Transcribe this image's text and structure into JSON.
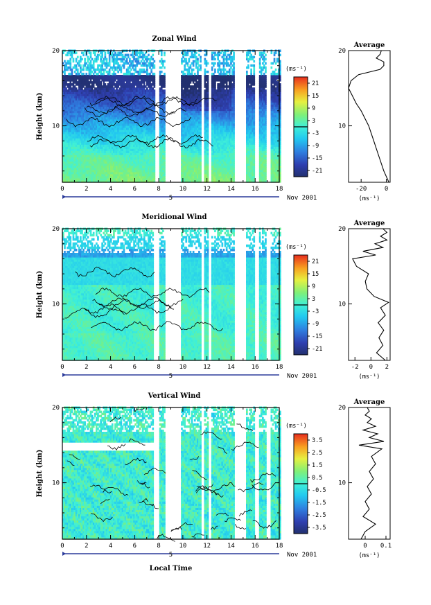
{
  "figure": {
    "date_label": "Nov 2001",
    "day_label": "5",
    "xlabel": "Local Time",
    "avg_title": "Average"
  },
  "chart_data": [
    {
      "type": "heatmap",
      "title": "Zonal Wind",
      "ylabel": "Height (km)",
      "xlim": [
        0,
        18
      ],
      "ylim": [
        2.5,
        20
      ],
      "x_ticks": [
        0,
        2,
        4,
        6,
        8,
        10,
        12,
        14,
        16,
        18
      ],
      "y_ticks": [
        10,
        20
      ],
      "colorbar": {
        "unit": "(ms⁻¹)",
        "labels": [
          21,
          15,
          9,
          3,
          -3,
          -9,
          -15,
          -21
        ],
        "min": -24,
        "max": 24
      },
      "data_gaps_hours": [
        [
          7.7,
          8.1
        ],
        [
          8.5,
          9.8
        ],
        [
          11.5,
          11.8
        ],
        [
          12.1,
          12.4
        ],
        [
          14.3,
          15.2
        ],
        [
          15.9,
          16.3
        ],
        [
          16.9,
          17.3
        ]
      ],
      "profile": {
        "name": "Average",
        "unit": "(ms⁻¹)",
        "xlim": [
          -30,
          3
        ],
        "x_ticks": [
          -20,
          0
        ],
        "heights": [
          2.5,
          4,
          6,
          8,
          10,
          11,
          12,
          13,
          14,
          15,
          16,
          16.8,
          17.5,
          18,
          18.5,
          19,
          19.5,
          20
        ],
        "values": [
          2,
          -2,
          -6,
          -10,
          -14,
          -17,
          -20,
          -24,
          -27,
          -30,
          -28,
          -22,
          -5,
          -2,
          -2,
          -8,
          -5,
          -4
        ]
      },
      "colors": {
        "positive": "#fbe75a",
        "negative": "#2a3a9a"
      }
    },
    {
      "type": "heatmap",
      "title": "Meridional Wind",
      "ylabel": "Height (km)",
      "xlim": [
        0,
        18
      ],
      "ylim": [
        2.5,
        20
      ],
      "x_ticks": [
        0,
        2,
        4,
        6,
        8,
        10,
        12,
        14,
        16,
        18
      ],
      "y_ticks": [
        10,
        20
      ],
      "colorbar": {
        "unit": "(ms⁻¹)",
        "labels": [
          21,
          15,
          9,
          3,
          -3,
          -9,
          -15,
          -21
        ],
        "min": -24,
        "max": 24
      },
      "data_gaps_hours": [
        [
          7.6,
          8.1
        ],
        [
          8.5,
          9.8
        ],
        [
          11.5,
          11.8
        ],
        [
          12.1,
          12.4
        ],
        [
          14.3,
          15.2
        ],
        [
          15.9,
          16.3
        ],
        [
          16.9,
          17.3
        ]
      ],
      "profile": {
        "name": "Average",
        "unit": "(ms⁻¹)",
        "xlim": [
          -2.8,
          2.4
        ],
        "x_ticks": [
          -2,
          0,
          2
        ],
        "heights": [
          2.5,
          3.5,
          4.5,
          5.5,
          6.5,
          7.5,
          8.5,
          9.5,
          10.2,
          11,
          12,
          13,
          14,
          15,
          16,
          16.5,
          17,
          17.5,
          18,
          18.5,
          19,
          19.5,
          20
        ],
        "values": [
          1.8,
          0.7,
          1.5,
          1.0,
          1.6,
          0.9,
          1.8,
          1.2,
          2.2,
          0.4,
          -0.5,
          -0.7,
          -0.3,
          -1.8,
          -2.3,
          0.6,
          -1.0,
          1.5,
          0.5,
          2.0,
          1.2,
          2.0,
          1.5
        ]
      },
      "colors": {
        "positive": "#fbe75a",
        "negative": "#2a3a9a"
      }
    },
    {
      "type": "heatmap",
      "title": "Vertical Wind",
      "ylabel": "Height (km)",
      "xlim": [
        0,
        18
      ],
      "ylim": [
        2.5,
        20
      ],
      "x_ticks": [
        0,
        2,
        4,
        6,
        8,
        10,
        12,
        14,
        16,
        18
      ],
      "y_ticks": [
        10,
        20
      ],
      "colorbar": {
        "unit": "(ms⁻¹)",
        "labels": [
          3.5,
          2.5,
          1.5,
          0.5,
          -0.5,
          -1.5,
          -2.5,
          -3.5
        ],
        "min": -4,
        "max": 4
      },
      "data_gaps_hours": [
        [
          7.6,
          8.1
        ],
        [
          8.5,
          9.8
        ],
        [
          11.5,
          11.8
        ],
        [
          12.1,
          12.4
        ],
        [
          14.3,
          15.2
        ],
        [
          15.9,
          16.3
        ],
        [
          16.9,
          17.3
        ]
      ],
      "profile": {
        "name": "Average",
        "unit": "(ms⁻¹)",
        "xlim": [
          -0.08,
          0.12
        ],
        "x_ticks": [
          0.0,
          0.1
        ],
        "heights": [
          2.5,
          3.5,
          4.5,
          5.5,
          6.5,
          7.5,
          8.5,
          9.5,
          10.5,
          11.5,
          12.5,
          13.5,
          14.5,
          15,
          15.5,
          16,
          16.5,
          17,
          17.5,
          18,
          18.5,
          19,
          19.5,
          20
        ],
        "values": [
          -0.02,
          0.0,
          0.05,
          -0.01,
          0.02,
          0.0,
          0.03,
          0.01,
          0.04,
          0.02,
          0.05,
          0.03,
          0.08,
          -0.03,
          0.09,
          0.02,
          0.06,
          -0.01,
          0.05,
          0.01,
          0.03,
          0.0,
          0.02,
          0.01
        ]
      },
      "colors": {
        "positive": "#fbe75a",
        "negative": "#2a3a9a"
      }
    }
  ]
}
